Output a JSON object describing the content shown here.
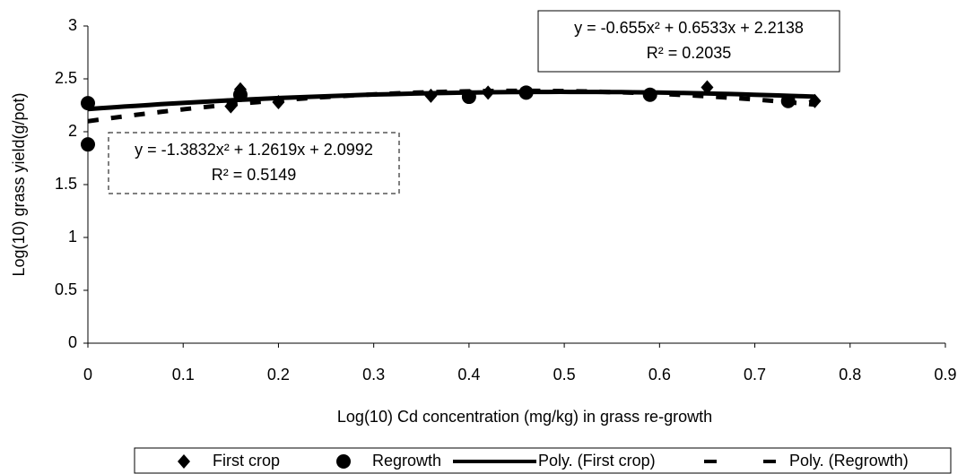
{
  "chart_data": {
    "type": "scatter",
    "x_label": "Log(10) Cd concentration (mg/kg) in grass re-growth",
    "y_label": "Log(10) grass yield(g/pot)",
    "xlim": [
      0,
      0.9
    ],
    "xticks": [
      0,
      0.1,
      0.2,
      0.3,
      0.4,
      0.5,
      0.6,
      0.7,
      0.8,
      0.9
    ],
    "ylim": [
      0,
      3
    ],
    "yticks": [
      0,
      0.5,
      1,
      1.5,
      2,
      2.5,
      3
    ],
    "grid": false,
    "legend": "bottom",
    "series": [
      {
        "name": "First crop",
        "color": "#000000",
        "marker": "diamond",
        "x": [
          0.15,
          0.16,
          0.2,
          0.36,
          0.42,
          0.65,
          0.763
        ],
        "values": [
          2.24,
          2.4,
          2.28,
          2.34,
          2.37,
          2.42,
          2.29
        ]
      },
      {
        "name": "Regrowth",
        "color": "#000000",
        "marker": "circle",
        "x": [
          0,
          0,
          0.16,
          0.4,
          0.46,
          0.59,
          0.735
        ],
        "values": [
          2.27,
          1.88,
          2.35,
          2.33,
          2.37,
          2.35,
          2.29
        ]
      }
    ],
    "trendlines": [
      {
        "name": "Poly. (First crop)",
        "style": "solid",
        "coefficients": [
          -0.655,
          0.6533,
          2.2138
        ],
        "equation": "y = -0.655x² + 0.6533x + 2.2138",
        "r2": "R² = 0.2035"
      },
      {
        "name": "Poly. (Regrowth)",
        "style": "dashed",
        "coefficients": [
          -1.3832,
          1.2619,
          2.0992
        ],
        "equation": "y = -1.3832x² + 1.2619x + 2.0992",
        "r2": "R² = 0.5149"
      }
    ]
  }
}
